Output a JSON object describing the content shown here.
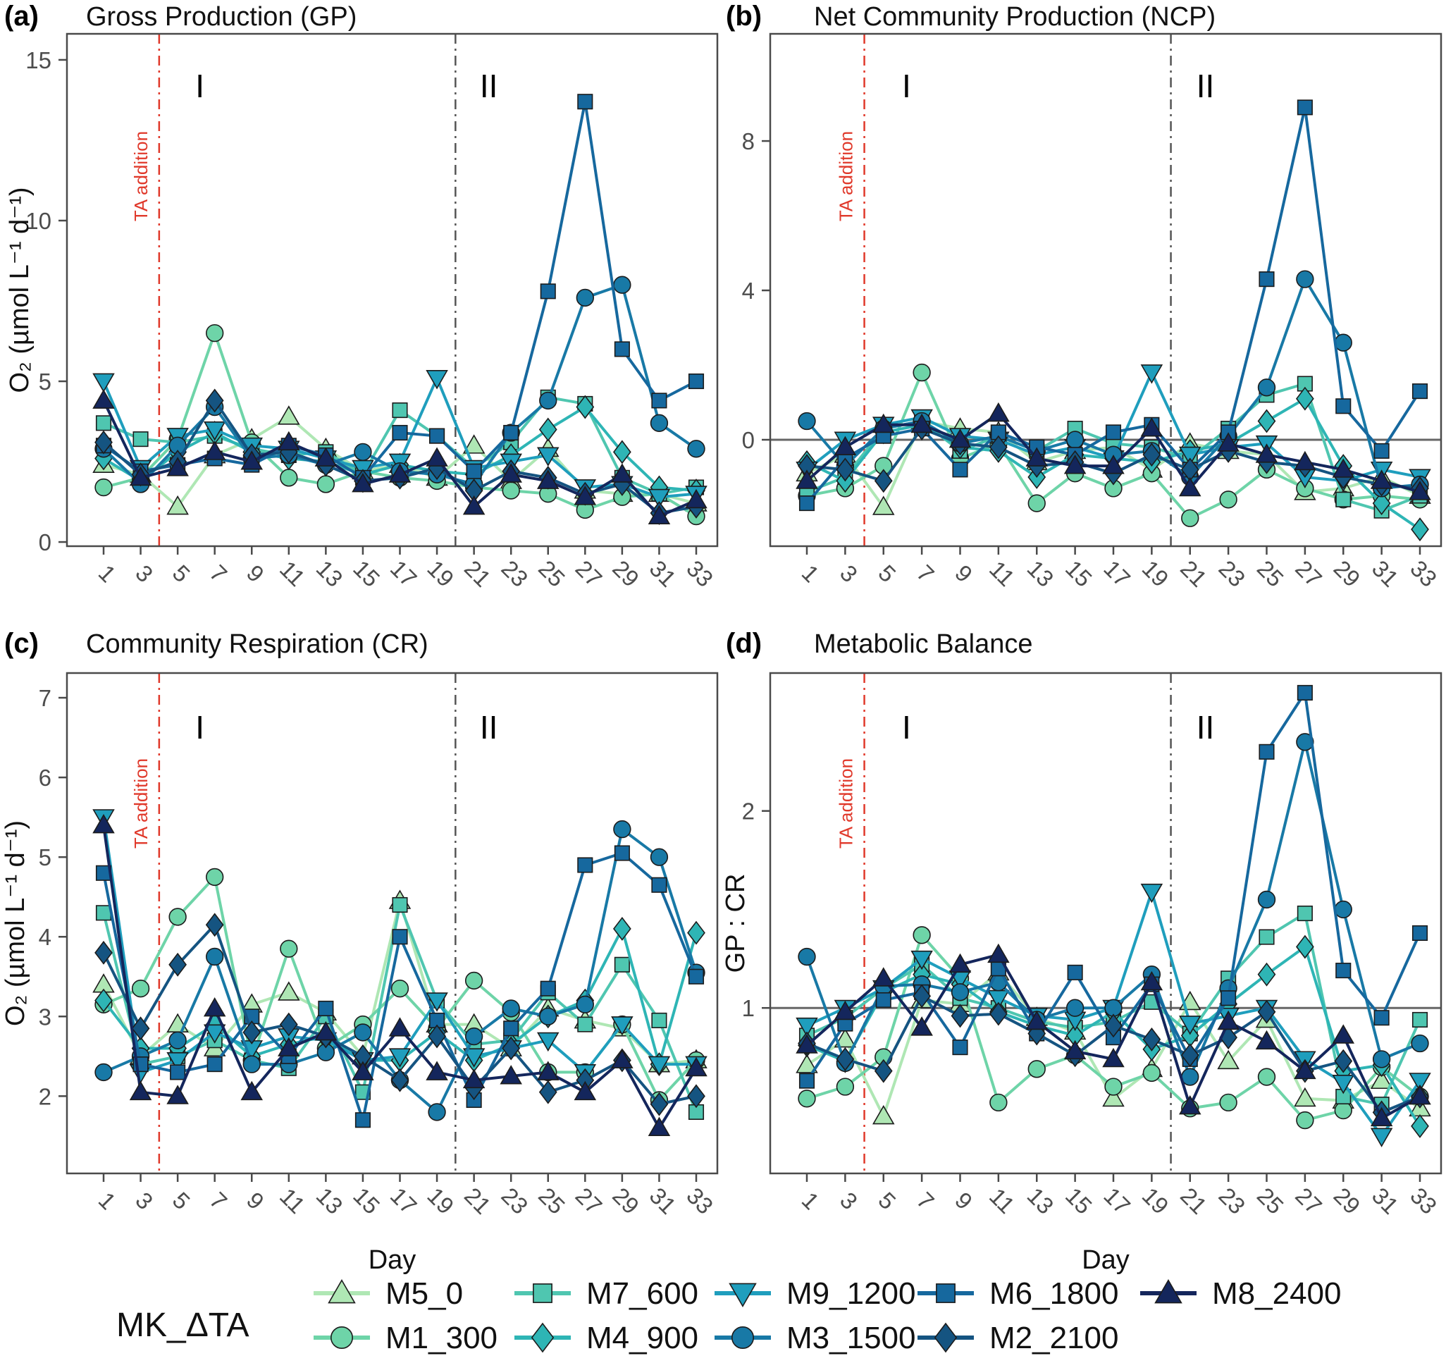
{
  "x_axis": {
    "label": "Day",
    "ticks": [
      1,
      3,
      5,
      7,
      9,
      11,
      13,
      15,
      17,
      19,
      21,
      23,
      25,
      27,
      29,
      31,
      33
    ]
  },
  "legend": {
    "title": "MK_ΔTA",
    "items": [
      {
        "label": "M5_0",
        "marker": "triangle-up",
        "color": "#afe7b4"
      },
      {
        "label": "M1_300",
        "marker": "circle",
        "color": "#6ed4a8"
      },
      {
        "label": "M7_600",
        "marker": "square",
        "color": "#4fc6b0"
      },
      {
        "label": "M4_900",
        "marker": "diamond",
        "color": "#2eb5b5"
      },
      {
        "label": "M9_1200",
        "marker": "triangle-down",
        "color": "#1f9ebd"
      },
      {
        "label": "M3_1500",
        "marker": "circle",
        "color": "#1879a6"
      },
      {
        "label": "M6_1800",
        "marker": "square",
        "color": "#16689e"
      },
      {
        "label": "M2_2100",
        "marker": "diamond",
        "color": "#155481"
      },
      {
        "label": "M8_2400",
        "marker": "triangle-up",
        "color": "#14265c"
      }
    ]
  },
  "phase_annotations": {
    "ta_line": {
      "day": 4,
      "label": "TA addition",
      "color": "#e0392b"
    },
    "phase2_line": {
      "day": 20,
      "color": "#555555"
    },
    "labels": [
      {
        "text": "I",
        "day": 6.2
      },
      {
        "text": "II",
        "day": 21.8
      }
    ]
  },
  "chart_data": [
    {
      "panel": "(a)",
      "type": "line",
      "title": "Gross Production (GP)",
      "ylabel": "O₂ (µmol L⁻¹ d⁻¹)",
      "xlabel": null,
      "ref_line": null,
      "yticks": [
        0,
        5,
        10,
        15
      ],
      "ylim": [
        -0.13,
        15.81
      ],
      "x": [
        1,
        3,
        5,
        7,
        9,
        11,
        13,
        15,
        17,
        19,
        21,
        23,
        25,
        27,
        29,
        31,
        33
      ],
      "series": [
        {
          "name": "M5_0",
          "values": [
            2.4,
            2.1,
            1.1,
            2.7,
            3.2,
            3.9,
            2.9,
            2.2,
            2.4,
            2.0,
            3.0,
            1.9,
            2.9,
            1.6,
            1.5,
            1.5,
            1.2
          ]
        },
        {
          "name": "M1_300",
          "values": [
            1.7,
            2.0,
            3.2,
            6.5,
            3.1,
            2.0,
            1.8,
            2.2,
            2.0,
            1.9,
            1.7,
            1.6,
            1.5,
            1.0,
            1.4,
            1.5,
            0.8
          ]
        },
        {
          "name": "M7_600",
          "values": [
            3.7,
            3.2,
            3.1,
            3.3,
            2.9,
            2.7,
            2.8,
            2.1,
            4.1,
            3.3,
            2.3,
            3.1,
            4.5,
            4.3,
            2.0,
            1.5,
            1.7
          ]
        },
        {
          "name": "M4_900",
          "values": [
            2.6,
            1.9,
            2.8,
            3.4,
            2.8,
            2.6,
            2.5,
            2.1,
            2.4,
            2.2,
            2.1,
            2.7,
            3.5,
            4.2,
            2.8,
            1.7,
            1.6
          ]
        },
        {
          "name": "M9_1200",
          "values": [
            5.0,
            2.3,
            3.3,
            3.5,
            3.0,
            2.9,
            2.6,
            2.3,
            2.5,
            5.1,
            2.3,
            2.5,
            2.7,
            1.7,
            1.8,
            1.4,
            1.5
          ]
        },
        {
          "name": "M3_1500",
          "values": [
            2.9,
            1.8,
            3.0,
            4.2,
            2.6,
            2.7,
            2.4,
            2.8,
            2.2,
            2.1,
            1.8,
            3.4,
            4.4,
            7.6,
            8.0,
            3.7,
            2.9
          ]
        },
        {
          "name": "M6_1800",
          "values": [
            3.0,
            2.2,
            2.4,
            2.6,
            2.4,
            3.0,
            2.7,
            2.0,
            3.4,
            3.3,
            2.2,
            3.4,
            7.8,
            13.7,
            6.0,
            4.4,
            5.0
          ]
        },
        {
          "name": "M2_2100",
          "values": [
            3.1,
            2.1,
            2.5,
            4.4,
            2.7,
            2.8,
            2.4,
            1.9,
            2.0,
            2.3,
            1.6,
            2.2,
            2.0,
            1.5,
            1.8,
            0.9,
            1.1
          ]
        },
        {
          "name": "M8_2400",
          "values": [
            4.4,
            2.0,
            2.3,
            2.8,
            2.5,
            3.1,
            2.6,
            1.8,
            2.1,
            2.6,
            1.1,
            2.1,
            1.9,
            1.4,
            2.1,
            0.8,
            1.3
          ]
        }
      ]
    },
    {
      "panel": "(b)",
      "type": "line",
      "title": "Net Community Production (NCP)",
      "ylabel": null,
      "xlabel": null,
      "ref_line": 0,
      "yticks": [
        0,
        4,
        8
      ],
      "ylim": [
        -2.85,
        10.87
      ],
      "x": [
        1,
        3,
        5,
        7,
        9,
        11,
        13,
        15,
        17,
        19,
        21,
        23,
        25,
        27,
        29,
        31,
        33
      ],
      "series": [
        {
          "name": "M5_0",
          "values": [
            -0.9,
            -0.4,
            -1.8,
            0.5,
            0.3,
            0.2,
            -0.6,
            -0.3,
            -0.2,
            -0.8,
            -0.1,
            -0.3,
            -0.4,
            -1.4,
            -1.3,
            -1.0,
            -1.5
          ]
        },
        {
          "name": "M1_300",
          "values": [
            -1.5,
            -1.3,
            -0.7,
            1.8,
            -0.5,
            -0.1,
            -1.7,
            -0.9,
            -1.3,
            -0.9,
            -2.1,
            -1.6,
            -0.8,
            -1.3,
            -1.6,
            -1.5,
            -1.6
          ]
        },
        {
          "name": "M7_600",
          "values": [
            -1.4,
            -1.0,
            0.3,
            0.5,
            -0.3,
            0.1,
            -0.3,
            0.3,
            -0.1,
            -0.2,
            -0.5,
            0.3,
            1.2,
            1.5,
            -1.6,
            -1.9,
            -1.5
          ]
        },
        {
          "name": "M4_900",
          "values": [
            -0.6,
            -1.1,
            0.2,
            0.4,
            -0.2,
            -0.3,
            -1.0,
            -0.4,
            -0.5,
            -0.6,
            -0.3,
            -0.1,
            0.5,
            1.1,
            -0.7,
            -1.7,
            -2.4
          ]
        },
        {
          "name": "M9_1200",
          "values": [
            -0.8,
            0.0,
            0.4,
            0.6,
            0.1,
            0.0,
            -0.4,
            -0.2,
            -0.5,
            1.8,
            -0.4,
            -0.2,
            -0.1,
            -1.0,
            -1.1,
            -0.8,
            -1.0
          ]
        },
        {
          "name": "M3_1500",
          "values": [
            0.5,
            -0.7,
            0.3,
            0.5,
            -0.1,
            0.1,
            -0.3,
            0.0,
            -0.4,
            -0.3,
            -1.0,
            0.1,
            1.4,
            4.3,
            2.6,
            -1.3,
            -1.2
          ]
        },
        {
          "name": "M6_1800",
          "values": [
            -1.7,
            -0.5,
            0.1,
            0.3,
            -0.8,
            0.2,
            -0.2,
            -0.4,
            0.2,
            0.4,
            -0.8,
            0.2,
            4.3,
            8.9,
            0.9,
            -0.3,
            1.3
          ]
        },
        {
          "name": "M2_2100",
          "values": [
            -0.7,
            -0.8,
            -1.1,
            0.3,
            -0.1,
            -0.2,
            -0.7,
            -0.6,
            -0.9,
            -0.4,
            -0.8,
            -0.3,
            -0.6,
            -0.7,
            -1.0,
            -1.2,
            -1.3
          ]
        },
        {
          "name": "M8_2400",
          "values": [
            -1.1,
            -0.2,
            0.4,
            0.4,
            0.0,
            0.7,
            -0.5,
            -0.7,
            -0.7,
            0.3,
            -1.3,
            -0.1,
            -0.4,
            -0.6,
            -0.8,
            -1.1,
            -1.4
          ]
        }
      ]
    },
    {
      "panel": "(c)",
      "type": "line",
      "title": "Community Respiration (CR)",
      "ylabel": "O₂ (µmol L⁻¹ d⁻¹)",
      "xlabel": "Day",
      "ref_line": null,
      "yticks": [
        2,
        3,
        4,
        5,
        6,
        7
      ],
      "ylim": [
        1.03,
        7.31
      ],
      "x": [
        1,
        3,
        5,
        7,
        9,
        11,
        13,
        15,
        17,
        19,
        21,
        23,
        25,
        27,
        29,
        31,
        33
      ],
      "series": [
        {
          "name": "M5_0",
          "values": [
            3.4,
            2.5,
            2.9,
            2.6,
            3.15,
            3.3,
            3.05,
            2.5,
            4.45,
            2.9,
            2.9,
            2.6,
            3.1,
            2.95,
            2.85,
            2.4,
            2.45
          ]
        },
        {
          "name": "M1_300",
          "values": [
            3.15,
            3.35,
            4.25,
            4.75,
            2.45,
            3.85,
            2.6,
            2.9,
            3.35,
            2.85,
            3.45,
            3.05,
            2.3,
            2.3,
            2.9,
            1.95,
            2.45
          ]
        },
        {
          "name": "M7_600",
          "values": [
            4.3,
            2.4,
            2.5,
            2.7,
            2.45,
            2.35,
            3.0,
            2.05,
            4.4,
            3.2,
            2.65,
            2.7,
            3.3,
            2.9,
            3.65,
            2.95,
            1.8
          ]
        },
        {
          "name": "M4_900",
          "values": [
            3.2,
            2.6,
            2.6,
            2.9,
            2.5,
            2.65,
            2.75,
            2.45,
            2.45,
            2.8,
            2.45,
            2.65,
            3.0,
            3.2,
            4.1,
            2.4,
            4.05
          ]
        },
        {
          "name": "M9_1200",
          "values": [
            5.5,
            2.3,
            2.45,
            2.8,
            2.6,
            2.75,
            2.7,
            2.45,
            2.5,
            3.2,
            2.5,
            2.6,
            2.7,
            2.3,
            2.9,
            2.4,
            2.4
          ]
        },
        {
          "name": "M3_1500",
          "values": [
            2.3,
            2.5,
            2.7,
            3.75,
            2.4,
            2.4,
            2.55,
            2.8,
            2.2,
            1.8,
            2.75,
            3.1,
            3.0,
            3.15,
            5.35,
            5.0,
            3.55
          ]
        },
        {
          "name": "M6_1800",
          "values": [
            4.8,
            2.4,
            2.3,
            2.4,
            3.0,
            2.5,
            3.1,
            1.7,
            4.0,
            2.95,
            1.95,
            2.85,
            3.35,
            4.9,
            5.05,
            4.65,
            3.5
          ]
        },
        {
          "name": "M2_2100",
          "values": [
            3.8,
            2.85,
            3.65,
            4.15,
            2.8,
            2.9,
            2.75,
            2.5,
            2.2,
            2.75,
            2.1,
            2.6,
            2.05,
            2.2,
            2.45,
            1.9,
            2.0
          ]
        },
        {
          "name": "M8_2400",
          "values": [
            5.4,
            2.05,
            2.0,
            3.1,
            2.05,
            2.6,
            2.8,
            2.3,
            2.85,
            2.3,
            2.2,
            2.25,
            2.3,
            2.05,
            2.45,
            1.6,
            2.35
          ]
        }
      ]
    },
    {
      "panel": "(d)",
      "type": "line",
      "title": "Metabolic Balance",
      "ylabel": "GP : CR",
      "xlabel": "Day",
      "ref_line": 1,
      "yticks": [
        1,
        2
      ],
      "ylim": [
        0.16,
        2.7
      ],
      "x": [
        1,
        3,
        5,
        7,
        9,
        11,
        13,
        15,
        17,
        19,
        21,
        23,
        25,
        27,
        29,
        31,
        33
      ],
      "series": [
        {
          "name": "M5_0",
          "values": [
            0.71,
            0.84,
            0.45,
            1.04,
            1.02,
            1.18,
            0.95,
            0.88,
            0.54,
            0.69,
            1.03,
            0.73,
            0.94,
            0.54,
            0.53,
            0.63,
            0.49
          ]
        },
        {
          "name": "M1_300",
          "values": [
            0.54,
            0.6,
            0.75,
            1.37,
            1.15,
            0.52,
            0.69,
            0.76,
            0.6,
            0.67,
            0.49,
            0.52,
            0.65,
            0.43,
            0.48,
            0.7,
            0.55
          ]
        },
        {
          "name": "M7_600",
          "values": [
            0.86,
            0.95,
            1.1,
            1.22,
            1.05,
            1.0,
            0.93,
            0.9,
            0.93,
            1.03,
            0.87,
            1.15,
            1.36,
            1.48,
            0.55,
            0.51,
            0.94
          ]
        },
        {
          "name": "M4_900",
          "values": [
            0.81,
            0.73,
            1.08,
            1.17,
            1.12,
            0.98,
            0.91,
            0.86,
            0.98,
            0.79,
            0.86,
            1.02,
            1.17,
            1.31,
            0.68,
            0.71,
            0.4
          ]
        },
        {
          "name": "M9_1200",
          "values": [
            0.91,
            1.0,
            1.1,
            1.25,
            1.15,
            1.05,
            0.96,
            0.94,
            1.0,
            1.59,
            0.92,
            0.96,
            1.0,
            0.74,
            0.62,
            0.35,
            0.63
          ]
        },
        {
          "name": "M3_1500",
          "values": [
            1.26,
            0.72,
            1.11,
            1.12,
            1.08,
            1.13,
            0.94,
            1.0,
            1.0,
            1.17,
            0.65,
            1.1,
            1.55,
            2.35,
            1.5,
            0.74,
            0.82
          ]
        },
        {
          "name": "M6_1800",
          "values": [
            0.63,
            0.92,
            1.04,
            1.08,
            0.8,
            1.2,
            0.87,
            1.18,
            0.85,
            1.12,
            0.74,
            1.05,
            2.3,
            2.6,
            1.19,
            0.95,
            1.38
          ]
        },
        {
          "name": "M2_2100",
          "values": [
            0.82,
            0.74,
            0.68,
            1.06,
            0.96,
            0.97,
            0.87,
            0.76,
            0.91,
            0.84,
            0.76,
            0.85,
            0.98,
            0.68,
            0.73,
            0.47,
            0.55
          ]
        },
        {
          "name": "M8_2400",
          "values": [
            0.81,
            0.98,
            1.15,
            0.9,
            1.22,
            1.27,
            0.93,
            0.78,
            0.74,
            1.13,
            0.5,
            0.93,
            0.83,
            0.68,
            0.86,
            0.44,
            0.55
          ]
        }
      ]
    }
  ]
}
